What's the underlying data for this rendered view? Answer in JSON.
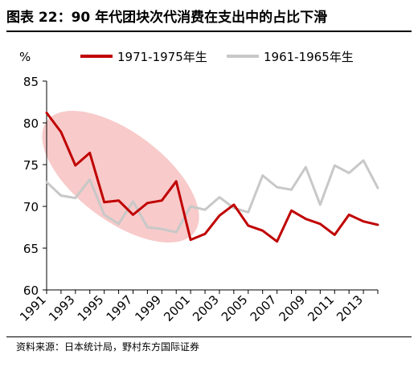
{
  "figure": {
    "title": "图表 22：90 年代团块次代消费在支出中的占比下滑",
    "source": "资料来源：日本统计局，野村东方国际证券"
  },
  "chart_data": {
    "type": "line",
    "ylabel": "%",
    "ylim": [
      60,
      85
    ],
    "yticks": [
      60,
      65,
      70,
      75,
      80,
      85
    ],
    "xlim": [
      1991,
      2014
    ],
    "xticks": [
      "1991",
      "1993",
      "1995",
      "1997",
      "1999",
      "2001",
      "2003",
      "2005",
      "2007",
      "2009",
      "2011",
      "2013"
    ],
    "grid": false,
    "legend_position": "top",
    "highlight": "ellipse around 1991-2001 decline of the 1971-1975 series",
    "series": [
      {
        "name": "1971-1975年生",
        "color": "#c00000",
        "x": [
          1991,
          1992,
          1993,
          1994,
          1995,
          1996,
          1997,
          1998,
          1999,
          2000,
          2001,
          2002,
          2003,
          2004,
          2005,
          2006,
          2007,
          2008,
          2009,
          2010,
          2011,
          2012,
          2013,
          2014
        ],
        "values": [
          81.2,
          78.9,
          74.9,
          76.4,
          70.5,
          70.7,
          69.0,
          70.4,
          70.7,
          73.0,
          66.0,
          66.7,
          68.9,
          70.2,
          67.7,
          67.1,
          65.8,
          69.5,
          68.5,
          67.9,
          66.6,
          69.0,
          68.2,
          67.8
        ]
      },
      {
        "name": "1961-1965年生",
        "color": "#c8c8c8",
        "x": [
          1991,
          1992,
          1993,
          1994,
          1995,
          1996,
          1997,
          1998,
          1999,
          2000,
          2001,
          2002,
          2003,
          2004,
          2005,
          2006,
          2007,
          2008,
          2009,
          2010,
          2011,
          2012,
          2013,
          2014
        ],
        "values": [
          72.9,
          71.3,
          71.0,
          73.2,
          69.0,
          67.9,
          70.6,
          67.5,
          67.3,
          66.9,
          70.0,
          69.6,
          71.1,
          69.8,
          69.3,
          73.7,
          72.3,
          72.0,
          74.7,
          70.2,
          74.9,
          74.0,
          75.5,
          72.2
        ]
      }
    ]
  }
}
